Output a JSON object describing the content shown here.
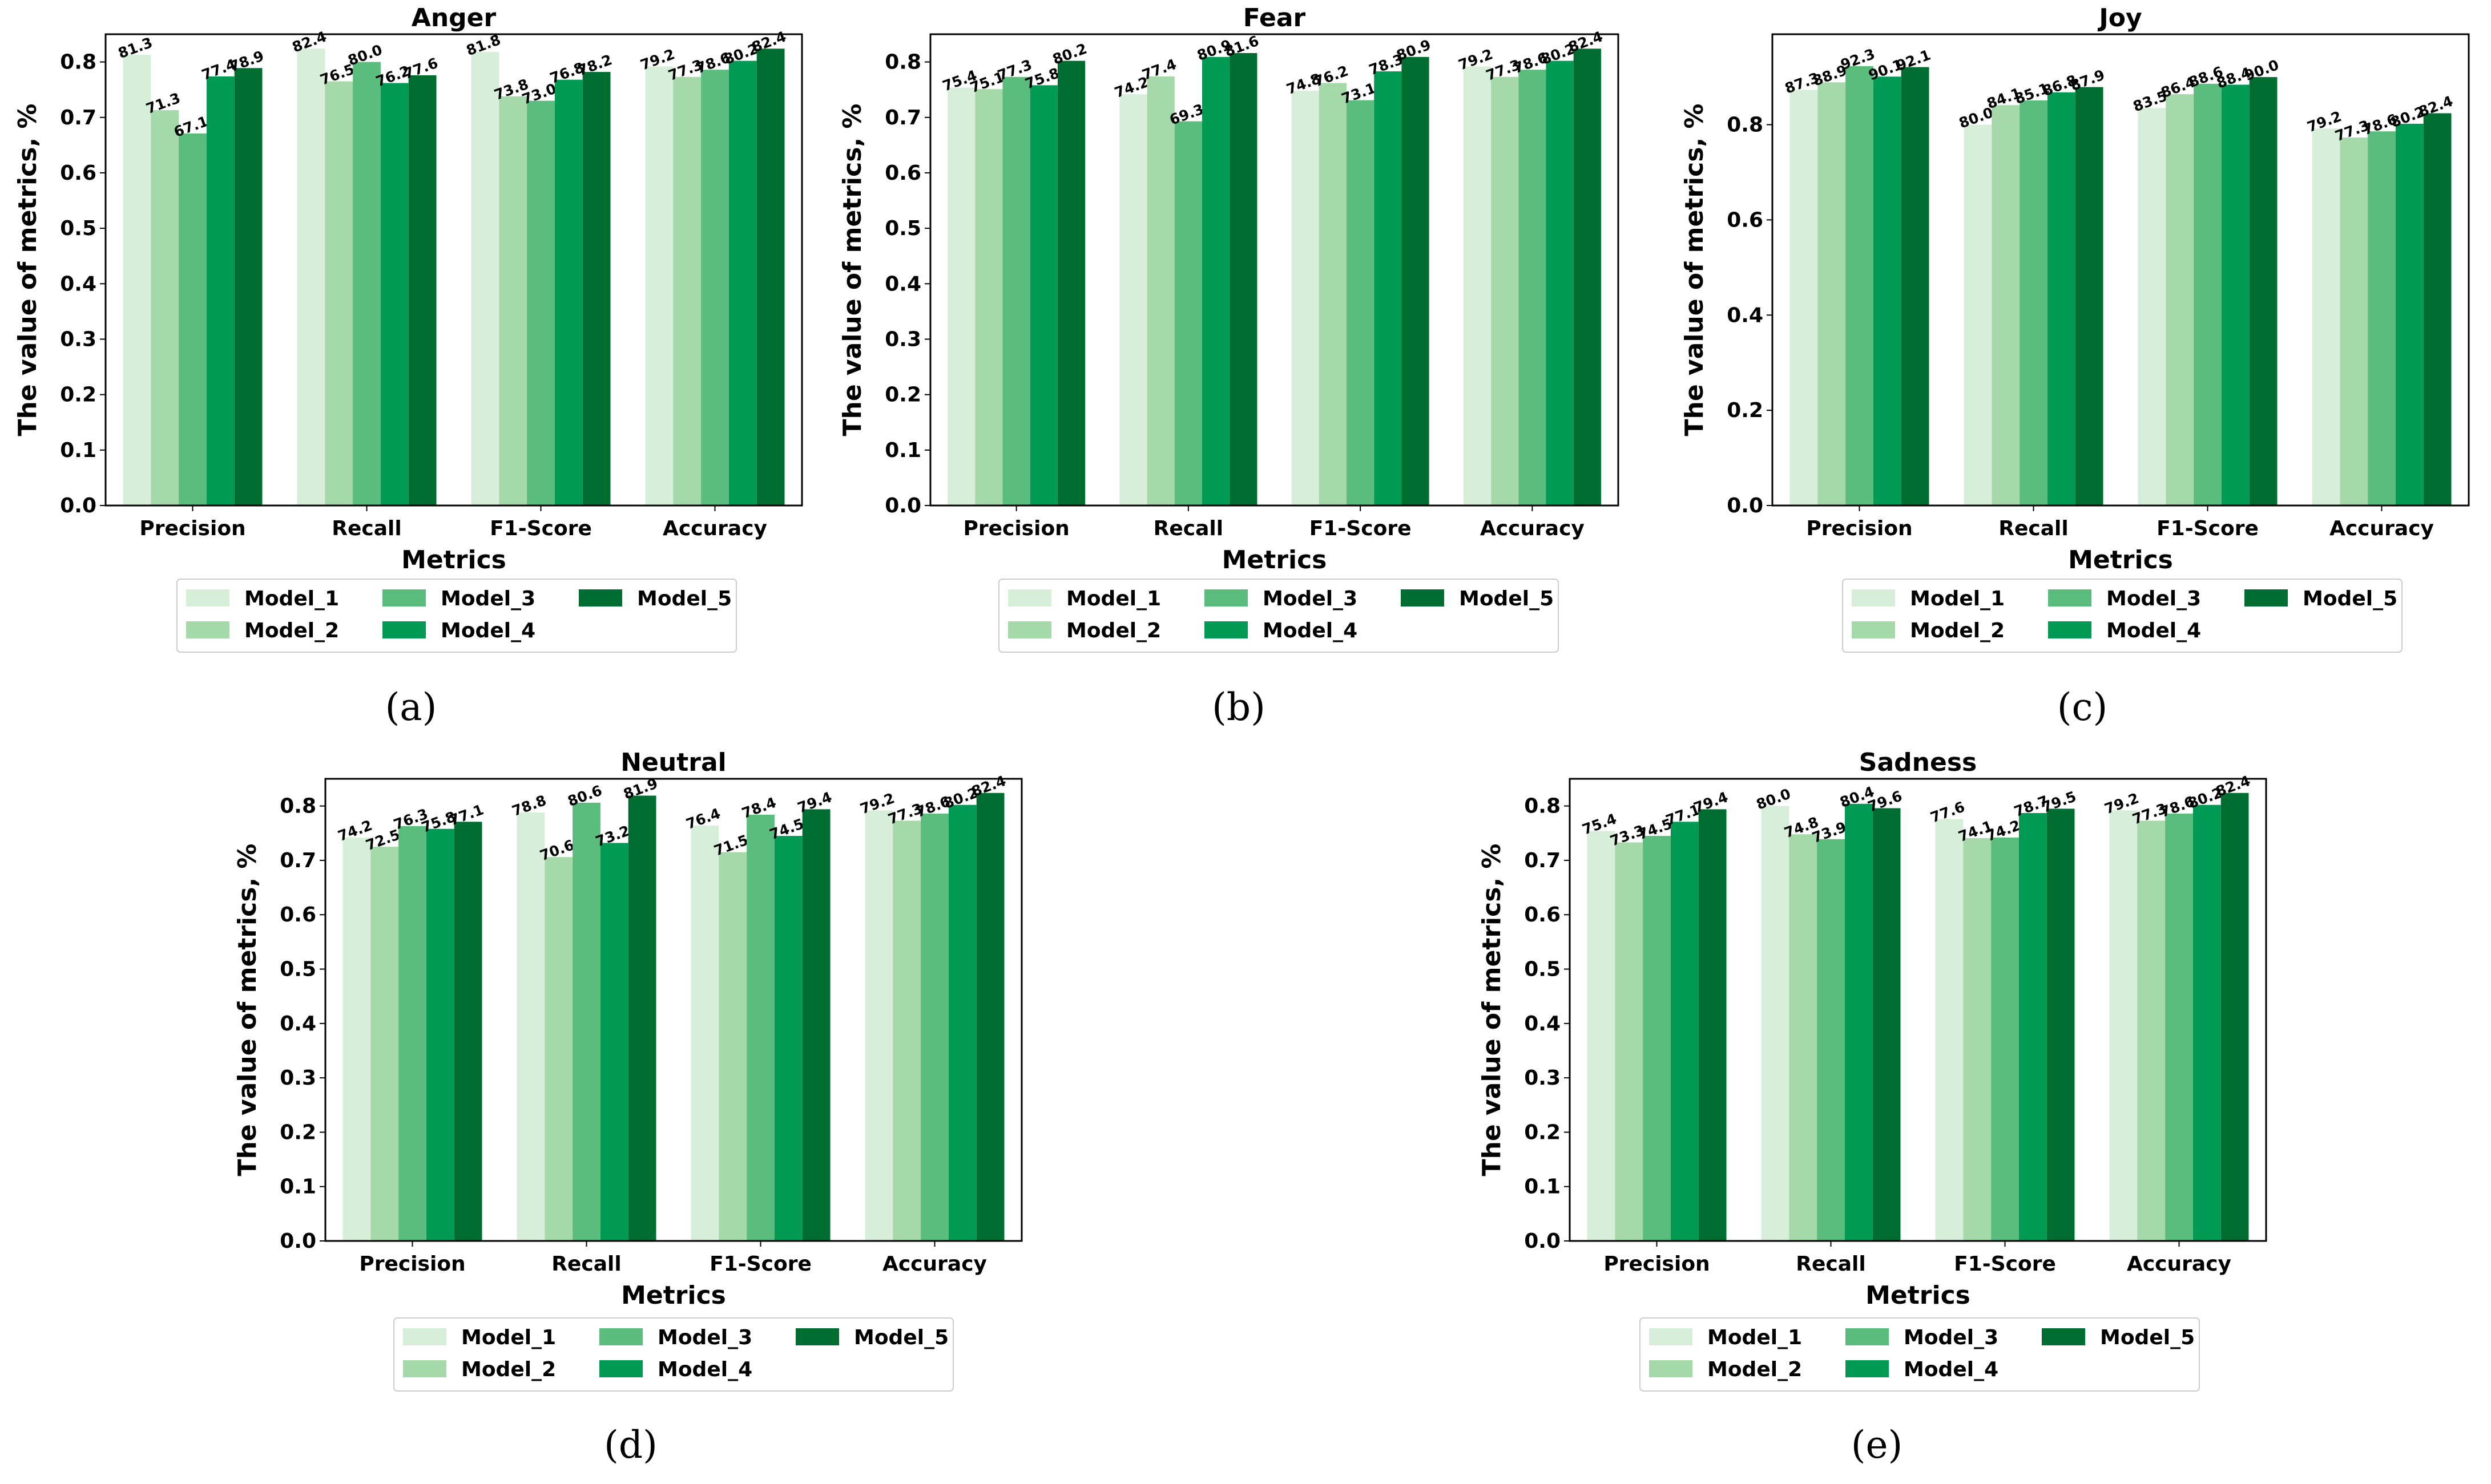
{
  "colors": {
    "Model_1": "#d7efd9",
    "Model_2": "#a6d9aa",
    "Model_3": "#5bbd7d",
    "Model_4": "#009a55",
    "Model_5": "#006d30"
  },
  "chart_data": [
    {
      "type": "bar",
      "caption": "(a)",
      "title": "Anger",
      "xlabel": "Metrics",
      "ylabel": "The value of metrics, %",
      "ylim": [
        0,
        0.85
      ],
      "yticks": [
        "0.0",
        "0.1",
        "0.2",
        "0.3",
        "0.4",
        "0.5",
        "0.6",
        "0.7",
        "0.8"
      ],
      "categories": [
        "Precision",
        "Recall",
        "F1-Score",
        "Accuracy"
      ],
      "legend_position": "below",
      "series": [
        {
          "name": "Model_1",
          "values": [
            81.3,
            82.4,
            81.8,
            79.2
          ]
        },
        {
          "name": "Model_2",
          "values": [
            71.3,
            76.5,
            73.8,
            77.3
          ]
        },
        {
          "name": "Model_3",
          "values": [
            67.1,
            80.0,
            73.0,
            78.6
          ]
        },
        {
          "name": "Model_4",
          "values": [
            77.4,
            76.2,
            76.8,
            80.2
          ]
        },
        {
          "name": "Model_5",
          "values": [
            78.9,
            77.6,
            78.2,
            82.4
          ]
        }
      ]
    },
    {
      "type": "bar",
      "caption": "(b)",
      "title": "Fear",
      "xlabel": "Metrics",
      "ylabel": "The value of metrics, %",
      "ylim": [
        0,
        0.85
      ],
      "yticks": [
        "0.0",
        "0.1",
        "0.2",
        "0.3",
        "0.4",
        "0.5",
        "0.6",
        "0.7",
        "0.8"
      ],
      "categories": [
        "Precision",
        "Recall",
        "F1-Score",
        "Accuracy"
      ],
      "legend_position": "below",
      "series": [
        {
          "name": "Model_1",
          "values": [
            75.4,
            74.2,
            74.8,
            79.2
          ]
        },
        {
          "name": "Model_2",
          "values": [
            75.1,
            77.4,
            76.2,
            77.3
          ]
        },
        {
          "name": "Model_3",
          "values": [
            77.3,
            69.3,
            73.1,
            78.6
          ]
        },
        {
          "name": "Model_4",
          "values": [
            75.8,
            80.9,
            78.3,
            80.2
          ]
        },
        {
          "name": "Model_5",
          "values": [
            80.2,
            81.6,
            80.9,
            82.4
          ]
        }
      ]
    },
    {
      "type": "bar",
      "caption": "(c)",
      "title": "Joy",
      "xlabel": "Metrics",
      "ylabel": "The value of metrics, %",
      "ylim": [
        0,
        0.99
      ],
      "yticks": [
        "0.0",
        "0.2",
        "0.4",
        "0.6",
        "0.8"
      ],
      "categories": [
        "Precision",
        "Recall",
        "F1-Score",
        "Accuracy"
      ],
      "legend_position": "below",
      "series": [
        {
          "name": "Model_1",
          "values": [
            87.3,
            80.0,
            83.5,
            79.2
          ]
        },
        {
          "name": "Model_2",
          "values": [
            88.9,
            84.1,
            86.4,
            77.3
          ]
        },
        {
          "name": "Model_3",
          "values": [
            92.3,
            85.1,
            88.6,
            78.6
          ]
        },
        {
          "name": "Model_4",
          "values": [
            90.1,
            86.8,
            88.4,
            80.2
          ]
        },
        {
          "name": "Model_5",
          "values": [
            92.1,
            87.9,
            90.0,
            82.4
          ]
        }
      ]
    },
    {
      "type": "bar",
      "caption": "(d)",
      "title": "Neutral",
      "xlabel": "Metrics",
      "ylabel": "The value of metrics, %",
      "ylim": [
        0,
        0.85
      ],
      "yticks": [
        "0.0",
        "0.1",
        "0.2",
        "0.3",
        "0.4",
        "0.5",
        "0.6",
        "0.7",
        "0.8"
      ],
      "categories": [
        "Precision",
        "Recall",
        "F1-Score",
        "Accuracy"
      ],
      "legend_position": "below",
      "series": [
        {
          "name": "Model_1",
          "values": [
            74.2,
            78.8,
            76.4,
            79.2
          ]
        },
        {
          "name": "Model_2",
          "values": [
            72.5,
            70.6,
            71.5,
            77.3
          ]
        },
        {
          "name": "Model_3",
          "values": [
            76.3,
            80.6,
            78.4,
            78.6
          ]
        },
        {
          "name": "Model_4",
          "values": [
            75.8,
            73.2,
            74.5,
            80.2
          ]
        },
        {
          "name": "Model_5",
          "values": [
            77.1,
            81.9,
            79.4,
            82.4
          ]
        }
      ]
    },
    {
      "type": "bar",
      "caption": "(e)",
      "title": "Sadness",
      "xlabel": "Metrics",
      "ylabel": "The value of metrics, %",
      "ylim": [
        0,
        0.85
      ],
      "yticks": [
        "0.0",
        "0.1",
        "0.2",
        "0.3",
        "0.4",
        "0.5",
        "0.6",
        "0.7",
        "0.8"
      ],
      "categories": [
        "Precision",
        "Recall",
        "F1-Score",
        "Accuracy"
      ],
      "legend_position": "below",
      "series": [
        {
          "name": "Model_1",
          "values": [
            75.4,
            80.0,
            77.6,
            79.2
          ]
        },
        {
          "name": "Model_2",
          "values": [
            73.3,
            74.8,
            74.1,
            77.3
          ]
        },
        {
          "name": "Model_3",
          "values": [
            74.5,
            73.9,
            74.2,
            78.6
          ]
        },
        {
          "name": "Model_4",
          "values": [
            77.1,
            80.4,
            78.7,
            80.2
          ]
        },
        {
          "name": "Model_5",
          "values": [
            79.4,
            79.6,
            79.5,
            82.4
          ]
        }
      ]
    }
  ]
}
